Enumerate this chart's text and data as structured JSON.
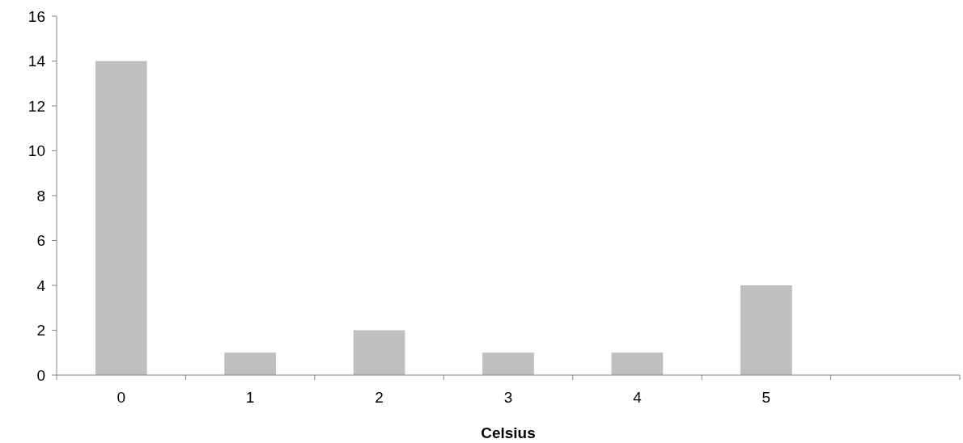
{
  "chart_data": {
    "type": "bar",
    "xlabel": "Celsius",
    "categories": [
      "0",
      "1",
      "2",
      "3",
      "4",
      "5",
      null
    ],
    "values": [
      14,
      1,
      2,
      1,
      1,
      4,
      null
    ],
    "color": "#bfbfbf",
    "ylim": [
      0,
      16
    ],
    "yticks": [
      0,
      2,
      4,
      6,
      8,
      10,
      12,
      14,
      16
    ],
    "grid": false
  }
}
